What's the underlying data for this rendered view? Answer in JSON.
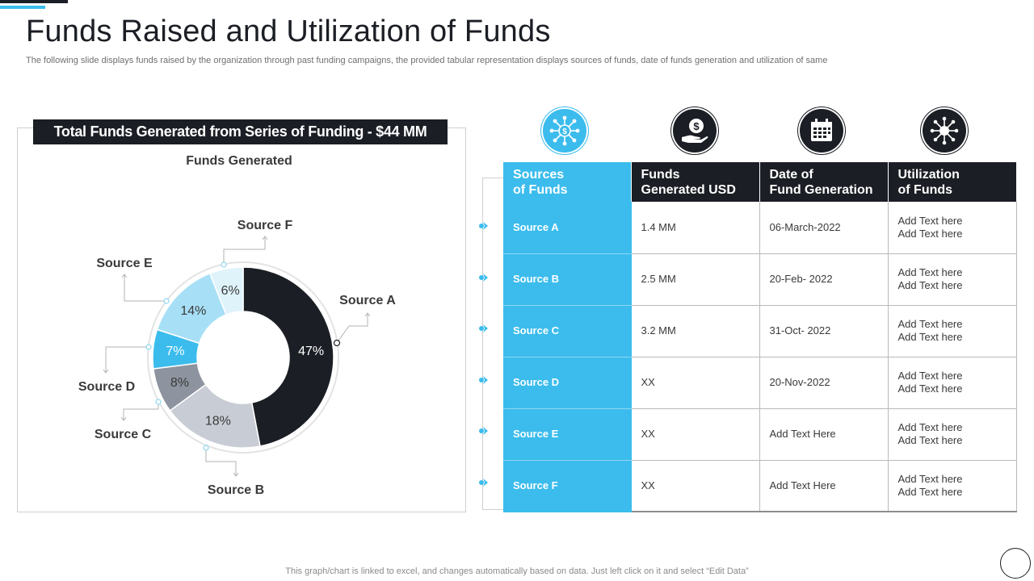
{
  "slide": {
    "title": "Funds Raised and Utilization of Funds",
    "subtitle": "The following slide displays funds raised by the organization through past funding campaigns, the provided tabular representation displays sources of funds, date of funds generation and utilization of same",
    "footer_note": "This graph/chart is linked to excel,  and changes automatically based on data. Just left click on it and select “Edit Data”"
  },
  "chart_panel": {
    "banner": "Total Funds Generated from Series of Funding - $44 MM"
  },
  "chart_data": {
    "type": "pie",
    "variant": "donut",
    "title": "Funds Generated",
    "categories": [
      "Source A",
      "Source B",
      "Source C",
      "Source D",
      "Source E",
      "Source F"
    ],
    "values": [
      47,
      18,
      8,
      7,
      14,
      6
    ],
    "labels": [
      "47%",
      "18%",
      "8%",
      "7%",
      "14%",
      "6%"
    ],
    "colors": [
      "#1b1e24",
      "#c8ccd4",
      "#8d949f",
      "#3bbced",
      "#a7e0f6",
      "#dff3fb"
    ],
    "label_colors": [
      "#ffffff",
      "#3a3a3a",
      "#3a3a3a",
      "#ffffff",
      "#3a3a3a",
      "#3a3a3a"
    ]
  },
  "icons": [
    {
      "name": "network-dollar-icon",
      "style": "blue"
    },
    {
      "name": "hand-dollar-icon",
      "style": "dark"
    },
    {
      "name": "calendar-icon",
      "style": "dark"
    },
    {
      "name": "hub-network-icon",
      "style": "dark"
    }
  ],
  "table": {
    "headers": [
      {
        "line1": "Sources",
        "line2": "of Funds"
      },
      {
        "line1": "Funds",
        "line2": "Generated USD"
      },
      {
        "line1": "Date of",
        "line2": "Fund Generation"
      },
      {
        "line1": "Utilization",
        "line2": "of Funds"
      }
    ],
    "rows": [
      {
        "source": "Source A",
        "funds": "1.4 MM",
        "date": "06-March-2022",
        "util1": "Add Text here",
        "util2": "Add Text here"
      },
      {
        "source": "Source B",
        "funds": "2.5 MM",
        "date": "20-Feb- 2022",
        "util1": "Add Text here",
        "util2": "Add Text here"
      },
      {
        "source": "Source C",
        "funds": "3.2 MM",
        "date": "31-Oct- 2022",
        "util1": "Add Text here",
        "util2": "Add Text here"
      },
      {
        "source": "Source D",
        "funds": "XX",
        "date": "20-Nov-2022",
        "util1": "Add Text here",
        "util2": "Add Text here"
      },
      {
        "source": "Source E",
        "funds": "XX",
        "date": "Add Text Here",
        "util1": "Add Text here",
        "util2": "Add Text here"
      },
      {
        "source": "Source F",
        "funds": "XX",
        "date": "Add Text Here",
        "util1": "Add Text here",
        "util2": "Add Text here"
      }
    ]
  }
}
